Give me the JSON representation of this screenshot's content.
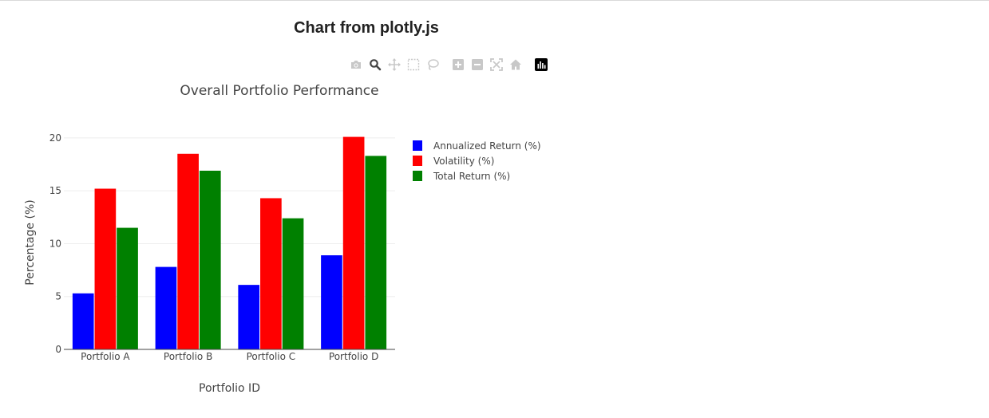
{
  "page": {
    "heading": "Chart from plotly.js"
  },
  "modebar": {
    "icons": [
      "camera-icon",
      "zoom-icon",
      "pan-icon",
      "box-select-icon",
      "lasso-icon",
      "zoom-in-icon",
      "zoom-out-icon",
      "autoscale-icon",
      "home-icon",
      "plotly-logo-icon"
    ],
    "active": "zoom-icon"
  },
  "chart_data": {
    "type": "bar",
    "title": "Overall Portfolio Performance",
    "xlabel": "Portfolio ID",
    "ylabel": "Percentage (%)",
    "categories": [
      "Portfolio A",
      "Portfolio B",
      "Portfolio C",
      "Portfolio D"
    ],
    "series": [
      {
        "name": "Annualized Return (%)",
        "color": "#0000ff",
        "values": [
          5.3,
          7.8,
          6.1,
          8.9
        ]
      },
      {
        "name": "Volatility (%)",
        "color": "#ff0000",
        "values": [
          15.2,
          18.5,
          14.3,
          20.1
        ]
      },
      {
        "name": "Total Return (%)",
        "color": "#008000",
        "values": [
          11.5,
          16.9,
          12.4,
          18.3
        ]
      }
    ],
    "ylim": [
      0,
      21.2
    ],
    "yticks": [
      0,
      5,
      10,
      15,
      20
    ],
    "grid": true,
    "legend": "right"
  }
}
